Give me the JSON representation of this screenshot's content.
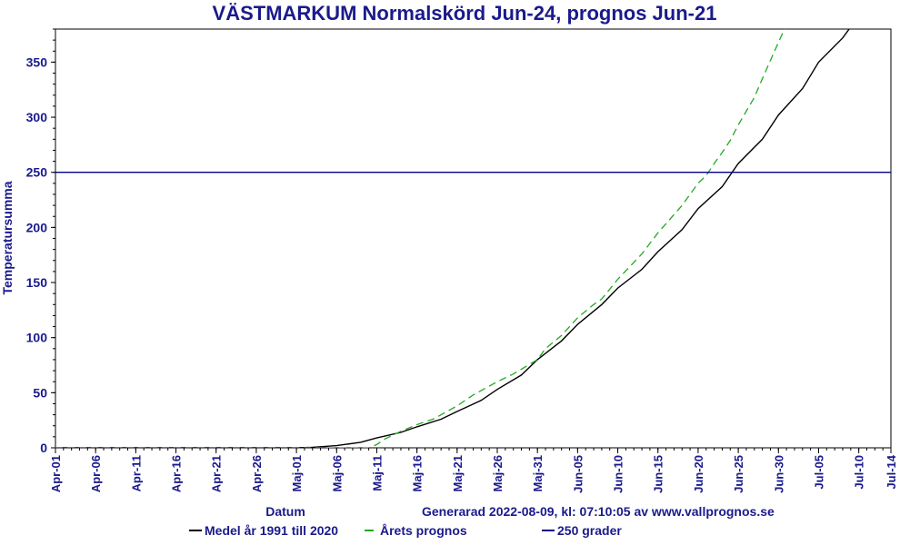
{
  "chart_data": {
    "type": "line",
    "title": "VÄSTMARKUM Normalskörd Jun-24, prognos Jun-21",
    "xlabel": "Datum",
    "ylabel": "Temperatursumma",
    "footer": "Generarad 2022-08-09, kl: 07:10:05 av www.vallprognos.se",
    "ylim": [
      0,
      380
    ],
    "yticks": [
      0,
      50,
      100,
      150,
      200,
      250,
      300,
      350
    ],
    "xlim": [
      "2022-04-01",
      "2022-07-14"
    ],
    "xtick_labels": [
      "Apr-01",
      "Apr-06",
      "Apr-11",
      "Apr-16",
      "Apr-21",
      "Apr-26",
      "Maj-01",
      "Maj-06",
      "Maj-11",
      "Maj-16",
      "Maj-21",
      "Maj-26",
      "Maj-31",
      "Jun-05",
      "Jun-10",
      "Jun-15",
      "Jun-20",
      "Jun-25",
      "Jun-30",
      "Jul-05",
      "Jul-10",
      "Jul-14"
    ],
    "grid": false,
    "legend_position": "bottom",
    "series": [
      {
        "name": "Medel år 1991 till 2020",
        "color": "#000000",
        "style": "solid",
        "points": [
          [
            "2022-04-01",
            0
          ],
          [
            "2022-05-01",
            0
          ],
          [
            "2022-05-03",
            0.5
          ],
          [
            "2022-05-06",
            2
          ],
          [
            "2022-05-09",
            5
          ],
          [
            "2022-05-11",
            9
          ],
          [
            "2022-05-14",
            14
          ],
          [
            "2022-05-16",
            19
          ],
          [
            "2022-05-19",
            26
          ],
          [
            "2022-05-21",
            33
          ],
          [
            "2022-05-24",
            43
          ],
          [
            "2022-05-26",
            53
          ],
          [
            "2022-05-29",
            66
          ],
          [
            "2022-05-31",
            80
          ],
          [
            "2022-06-03",
            97
          ],
          [
            "2022-06-05",
            112
          ],
          [
            "2022-06-08",
            130
          ],
          [
            "2022-06-10",
            145
          ],
          [
            "2022-06-13",
            162
          ],
          [
            "2022-06-15",
            178
          ],
          [
            "2022-06-18",
            198
          ],
          [
            "2022-06-20",
            217
          ],
          [
            "2022-06-23",
            237
          ],
          [
            "2022-06-25",
            258
          ],
          [
            "2022-06-28",
            280
          ],
          [
            "2022-06-30",
            302
          ],
          [
            "2022-07-03",
            326
          ],
          [
            "2022-07-05",
            350
          ],
          [
            "2022-07-08",
            372
          ],
          [
            "2022-07-10",
            392
          ],
          [
            "2022-07-11",
            400
          ]
        ]
      },
      {
        "name": "Årets prognos",
        "color": "#22aa22",
        "style": "dashed",
        "points": [
          [
            "2022-04-01",
            0
          ],
          [
            "2022-05-10",
            0
          ],
          [
            "2022-05-11",
            3
          ],
          [
            "2022-05-12",
            8
          ],
          [
            "2022-05-14",
            15
          ],
          [
            "2022-05-16",
            21
          ],
          [
            "2022-05-18",
            26
          ],
          [
            "2022-05-21",
            38
          ],
          [
            "2022-05-23",
            48
          ],
          [
            "2022-05-26",
            60
          ],
          [
            "2022-05-28",
            67
          ],
          [
            "2022-05-31",
            80
          ],
          [
            "2022-06-01",
            90
          ],
          [
            "2022-06-03",
            102
          ],
          [
            "2022-06-05",
            118
          ],
          [
            "2022-06-07",
            130
          ],
          [
            "2022-06-08",
            135
          ],
          [
            "2022-06-10",
            153
          ],
          [
            "2022-06-13",
            176
          ],
          [
            "2022-06-15",
            195
          ],
          [
            "2022-06-18",
            220
          ],
          [
            "2022-06-20",
            240
          ],
          [
            "2022-06-21",
            247
          ],
          [
            "2022-06-22",
            258
          ],
          [
            "2022-06-23",
            268
          ],
          [
            "2022-06-24",
            279
          ],
          [
            "2022-06-25",
            293
          ],
          [
            "2022-06-27",
            318
          ],
          [
            "2022-06-28",
            335
          ],
          [
            "2022-06-30",
            368
          ],
          [
            "2022-07-02",
            400
          ]
        ]
      },
      {
        "name": "250 grader",
        "color": "#00008b",
        "style": "solid",
        "points": [
          [
            "2022-04-01",
            250
          ],
          [
            "2022-07-14",
            250
          ]
        ]
      }
    ]
  }
}
